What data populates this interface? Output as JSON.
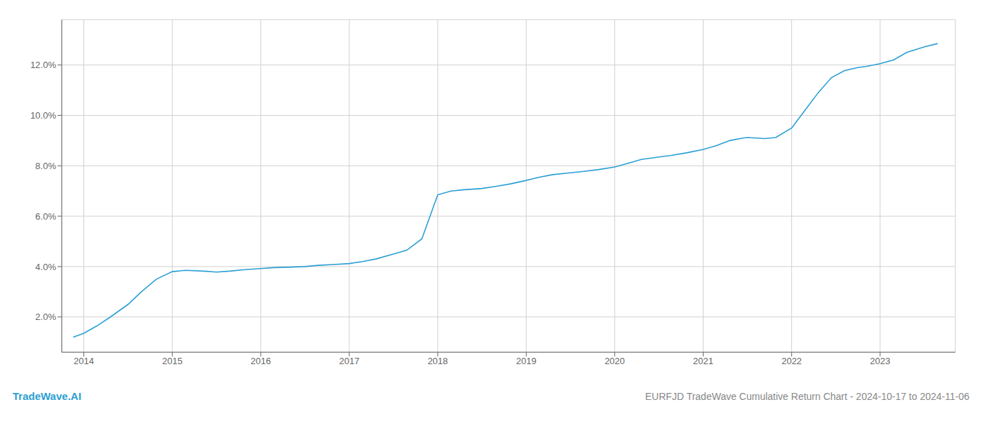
{
  "chart_data": {
    "type": "line",
    "title": "EURFJD TradeWave Cumulative Return Chart - 2024-10-17 to 2024-11-06",
    "annotations": [
      "TradeWave.AI"
    ],
    "color": "#2b9fd4",
    "grid": true,
    "x": [
      2013.88,
      2014.0,
      2014.15,
      2014.3,
      2014.5,
      2014.65,
      2014.82,
      2015.0,
      2015.15,
      2015.35,
      2015.5,
      2015.65,
      2015.82,
      2016.0,
      2016.15,
      2016.35,
      2016.5,
      2016.65,
      2016.82,
      2017.0,
      2017.15,
      2017.3,
      2017.5,
      2017.65,
      2017.82,
      2018.0,
      2018.15,
      2018.3,
      2018.5,
      2018.65,
      2018.82,
      2019.0,
      2019.15,
      2019.3,
      2019.5,
      2019.65,
      2019.82,
      2020.0,
      2020.15,
      2020.3,
      2020.5,
      2020.65,
      2020.82,
      2021.0,
      2021.15,
      2021.3,
      2021.45,
      2021.5,
      2021.6,
      2021.7,
      2021.82,
      2022.0,
      2022.15,
      2022.3,
      2022.45,
      2022.6,
      2022.75,
      2022.85,
      2023.0,
      2023.15,
      2023.3,
      2023.5,
      2023.65
    ],
    "values": [
      1.2,
      1.35,
      1.65,
      2.0,
      2.5,
      3.0,
      3.5,
      3.8,
      3.85,
      3.82,
      3.78,
      3.82,
      3.88,
      3.92,
      3.96,
      3.98,
      4.0,
      4.05,
      4.08,
      4.12,
      4.2,
      4.3,
      4.5,
      4.65,
      5.1,
      6.85,
      7.0,
      7.05,
      7.1,
      7.18,
      7.28,
      7.42,
      7.55,
      7.65,
      7.72,
      7.78,
      7.85,
      7.95,
      8.1,
      8.25,
      8.35,
      8.42,
      8.52,
      8.65,
      8.8,
      9.0,
      9.1,
      9.12,
      9.1,
      9.08,
      9.12,
      9.5,
      10.2,
      10.9,
      11.5,
      11.78,
      11.9,
      11.95,
      12.05,
      12.2,
      12.5,
      12.72,
      12.85
    ],
    "xlim": [
      2013.75,
      2023.85
    ],
    "ylim": [
      0.6,
      13.8
    ],
    "xticks": [
      2014,
      2015,
      2016,
      2017,
      2018,
      2019,
      2020,
      2021,
      2022,
      2023
    ],
    "yticks": [
      {
        "value": 2.0,
        "label": "2.0%"
      },
      {
        "value": 4.0,
        "label": "4.0%"
      },
      {
        "value": 6.0,
        "label": "6.0%"
      },
      {
        "value": 8.0,
        "label": "8.0%"
      },
      {
        "value": 10.0,
        "label": "10.0%"
      },
      {
        "value": 12.0,
        "label": "12.0%"
      }
    ]
  }
}
